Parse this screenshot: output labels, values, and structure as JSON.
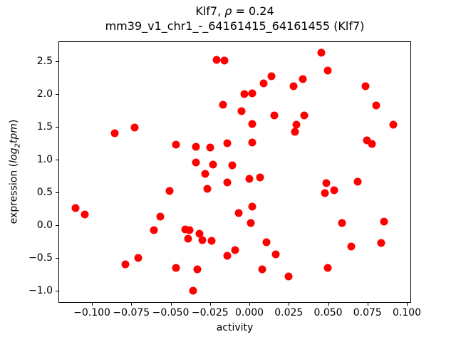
{
  "figure": {
    "title": {
      "gene": "Klf7, ",
      "rho_symbol": "ρ",
      "rho_value": " = 0.24"
    },
    "subtitle": "mm39_v1_chr1_-_64161415_64161455 (Klf7)",
    "xlabel": "activity",
    "ylabel": {
      "prefix": "expression (",
      "log": "log",
      "sub": "2",
      "tpm": "tpm",
      "suffix": ")"
    }
  },
  "chart_data": {
    "type": "scatter",
    "title": "Klf7, ρ = 0.24",
    "subtitle": "mm39_v1_chr1_-_64161415_64161455 (Klf7)",
    "xlabel": "activity",
    "ylabel": "expression (log2tpm)",
    "marker_color": "#ff0000",
    "grid": false,
    "legend": null,
    "xlim": [
      -0.1213,
      0.1027
    ],
    "ylim": [
      -1.19,
      2.805
    ],
    "xticks": [
      -0.1,
      -0.075,
      -0.05,
      -0.025,
      0.0,
      0.025,
      0.05,
      0.075,
      0.1
    ],
    "xtick_labels": [
      "−0.100",
      "−0.075",
      "−0.050",
      "−0.025",
      "0.000",
      "0.025",
      "0.050",
      "0.075",
      "0.100"
    ],
    "yticks": [
      -1.0,
      -0.5,
      0.0,
      0.5,
      1.0,
      1.5,
      2.0,
      2.5
    ],
    "ytick_labels": [
      "−1.0",
      "−0.5",
      "0.0",
      "0.5",
      "1.0",
      "1.5",
      "2.0",
      "2.5"
    ],
    "points": [
      [
        -0.086,
        1.4
      ],
      [
        -0.073,
        1.49
      ],
      [
        -0.047,
        1.23
      ],
      [
        -0.021,
        2.53
      ],
      [
        -0.016,
        2.52
      ],
      [
        0.014,
        2.28
      ],
      [
        0.009,
        2.17
      ],
      [
        0.028,
        2.13
      ],
      [
        -0.003,
        2.01
      ],
      [
        0.002,
        2.02
      ],
      [
        -0.017,
        1.84
      ],
      [
        -0.005,
        1.74
      ],
      [
        0.016,
        1.68
      ],
      [
        0.002,
        1.55
      ],
      [
        0.03,
        1.53
      ],
      [
        0.029,
        1.43
      ],
      [
        -0.014,
        1.25
      ],
      [
        0.002,
        1.26
      ],
      [
        -0.034,
        1.2
      ],
      [
        -0.025,
        1.18
      ],
      [
        -0.034,
        0.95
      ],
      [
        -0.023,
        0.92
      ],
      [
        -0.011,
        0.91
      ],
      [
        0.046,
        2.64
      ],
      [
        0.05,
        2.37
      ],
      [
        0.034,
        2.24
      ],
      [
        0.074,
        2.13
      ],
      [
        0.081,
        1.83
      ],
      [
        0.035,
        1.68
      ],
      [
        0.092,
        1.54
      ],
      [
        0.075,
        1.3
      ],
      [
        0.078,
        1.24
      ],
      [
        -0.111,
        0.26
      ],
      [
        -0.105,
        0.16
      ],
      [
        -0.051,
        0.52
      ],
      [
        -0.057,
        0.12
      ],
      [
        -0.061,
        -0.08
      ],
      [
        -0.071,
        -0.51
      ],
      [
        -0.079,
        -0.61
      ],
      [
        -0.047,
        -0.67
      ],
      [
        -0.028,
        0.78
      ],
      [
        -0.014,
        0.65
      ],
      [
        0.0,
        0.7
      ],
      [
        0.007,
        0.72
      ],
      [
        -0.027,
        0.55
      ],
      [
        0.002,
        0.28
      ],
      [
        -0.007,
        0.18
      ],
      [
        0.001,
        0.02
      ],
      [
        -0.041,
        -0.07
      ],
      [
        -0.038,
        -0.09
      ],
      [
        -0.039,
        -0.22
      ],
      [
        -0.032,
        -0.14
      ],
      [
        -0.03,
        -0.24
      ],
      [
        -0.024,
        -0.25
      ],
      [
        0.011,
        -0.27
      ],
      [
        -0.009,
        -0.39
      ],
      [
        -0.014,
        -0.48
      ],
      [
        0.017,
        -0.46
      ],
      [
        -0.033,
        -0.69
      ],
      [
        0.008,
        -0.69
      ],
      [
        0.025,
        -0.8
      ],
      [
        -0.036,
        -1.02
      ],
      [
        0.049,
        0.64
      ],
      [
        0.069,
        0.66
      ],
      [
        0.048,
        0.48
      ],
      [
        0.054,
        0.53
      ],
      [
        0.059,
        0.02
      ],
      [
        0.086,
        0.05
      ],
      [
        0.065,
        -0.34
      ],
      [
        0.084,
        -0.28
      ],
      [
        0.05,
        -0.66
      ]
    ]
  }
}
